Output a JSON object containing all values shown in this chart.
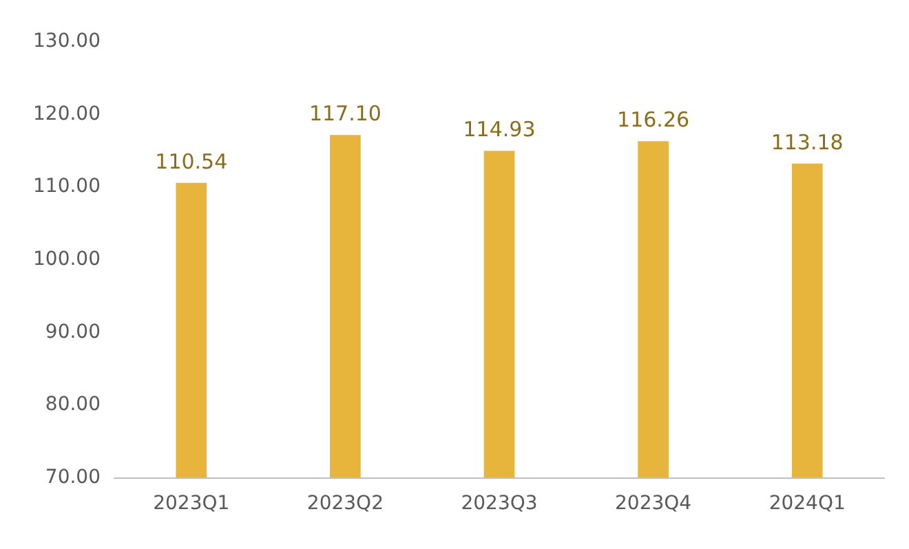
{
  "chart_data": {
    "type": "bar",
    "categories": [
      "2023Q1",
      "2023Q2",
      "2023Q3",
      "2023Q4",
      "2024Q1"
    ],
    "values": [
      110.54,
      117.1,
      114.93,
      116.26,
      113.18
    ],
    "color": "#e8b53c",
    "ylim": [
      70,
      130
    ],
    "yticks": [
      {
        "value": 70,
        "label": "70.00"
      },
      {
        "value": 80,
        "label": "80.00"
      },
      {
        "value": 90,
        "label": "90.00"
      },
      {
        "value": 100,
        "label": "100.00"
      },
      {
        "value": 110,
        "label": "110.00"
      },
      {
        "value": 120,
        "label": "120.00"
      },
      {
        "value": 130,
        "label": "130.00"
      }
    ],
    "value_labels": [
      "110.54",
      "117.10",
      "114.93",
      "116.26",
      "113.18"
    ]
  }
}
